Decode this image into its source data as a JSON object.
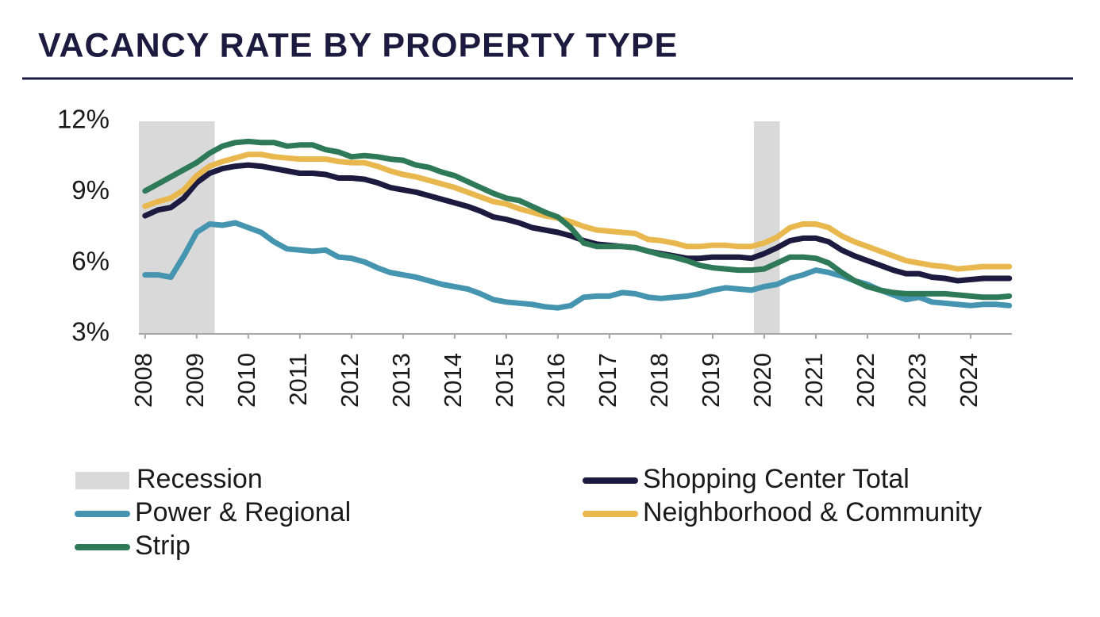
{
  "chart_data": {
    "type": "line",
    "title": "VACANCY RATE BY PROPERTY TYPE",
    "x": [
      2008,
      2008.25,
      2008.5,
      2008.75,
      2009,
      2009.25,
      2009.5,
      2009.75,
      2010,
      2010.25,
      2010.5,
      2010.75,
      2011,
      2011.25,
      2011.5,
      2011.75,
      2012,
      2012.25,
      2012.5,
      2012.75,
      2013,
      2013.25,
      2013.5,
      2013.75,
      2014,
      2014.25,
      2014.5,
      2014.75,
      2015,
      2015.25,
      2015.5,
      2015.75,
      2016,
      2016.25,
      2016.5,
      2016.75,
      2017,
      2017.25,
      2017.5,
      2017.75,
      2018,
      2018.25,
      2018.5,
      2018.75,
      2019,
      2019.25,
      2019.5,
      2019.75,
      2020,
      2020.25,
      2020.5,
      2020.75,
      2021,
      2021.25,
      2021.5,
      2021.75,
      2022,
      2022.25,
      2022.5,
      2022.75,
      2023,
      2023.25,
      2023.5,
      2023.75,
      2024,
      2024.25,
      2024.5,
      2024.75
    ],
    "series": [
      {
        "name": "Shopping Center Total",
        "color": "#1c1a3f",
        "values": [
          8.0,
          8.25,
          8.35,
          8.75,
          9.4,
          9.8,
          10.0,
          10.1,
          10.15,
          10.1,
          10.0,
          9.9,
          9.8,
          9.8,
          9.75,
          9.6,
          9.6,
          9.55,
          9.4,
          9.2,
          9.1,
          9.0,
          8.85,
          8.7,
          8.55,
          8.4,
          8.2,
          7.95,
          7.85,
          7.7,
          7.5,
          7.4,
          7.3,
          7.15,
          6.95,
          6.8,
          6.75,
          6.7,
          6.65,
          6.5,
          6.4,
          6.3,
          6.2,
          6.2,
          6.25,
          6.25,
          6.25,
          6.2,
          6.4,
          6.65,
          6.95,
          7.05,
          7.05,
          6.9,
          6.55,
          6.3,
          6.1,
          5.9,
          5.7,
          5.55,
          5.55,
          5.4,
          5.35,
          5.25,
          5.3,
          5.35,
          5.35,
          5.35
        ]
      },
      {
        "name": "Power & Regional",
        "color": "#4594b0",
        "values": [
          5.5,
          5.5,
          5.4,
          6.3,
          7.3,
          7.65,
          7.6,
          7.7,
          7.5,
          7.3,
          6.9,
          6.6,
          6.55,
          6.5,
          6.55,
          6.25,
          6.2,
          6.05,
          5.8,
          5.6,
          5.5,
          5.4,
          5.25,
          5.1,
          5.0,
          4.9,
          4.7,
          4.45,
          4.35,
          4.3,
          4.25,
          4.15,
          4.1,
          4.2,
          4.55,
          4.6,
          4.6,
          4.75,
          4.7,
          4.55,
          4.5,
          4.55,
          4.6,
          4.7,
          4.85,
          4.95,
          4.9,
          4.85,
          5.0,
          5.1,
          5.35,
          5.5,
          5.7,
          5.6,
          5.45,
          5.25,
          5.1,
          4.85,
          4.65,
          4.45,
          4.55,
          4.35,
          4.3,
          4.25,
          4.2,
          4.25,
          4.25,
          4.2
        ]
      },
      {
        "name": "Neighborhood & Community",
        "color": "#e8b84e",
        "values": [
          8.4,
          8.6,
          8.75,
          9.1,
          9.7,
          10.1,
          10.3,
          10.45,
          10.6,
          10.6,
          10.5,
          10.45,
          10.4,
          10.4,
          10.4,
          10.3,
          10.25,
          10.25,
          10.1,
          9.9,
          9.75,
          9.65,
          9.5,
          9.35,
          9.2,
          9.0,
          8.8,
          8.6,
          8.5,
          8.3,
          8.15,
          8.0,
          7.9,
          7.75,
          7.55,
          7.4,
          7.35,
          7.3,
          7.25,
          7.0,
          6.95,
          6.85,
          6.7,
          6.7,
          6.75,
          6.75,
          6.7,
          6.7,
          6.85,
          7.1,
          7.5,
          7.65,
          7.65,
          7.5,
          7.15,
          6.9,
          6.7,
          6.5,
          6.3,
          6.1,
          6.0,
          5.9,
          5.85,
          5.75,
          5.8,
          5.85,
          5.85,
          5.85
        ]
      },
      {
        "name": "Strip",
        "color": "#2e7a58",
        "values": [
          9.05,
          9.35,
          9.65,
          9.95,
          10.25,
          10.65,
          10.95,
          11.1,
          11.15,
          11.1,
          11.1,
          10.95,
          11.0,
          11.0,
          10.8,
          10.7,
          10.5,
          10.55,
          10.5,
          10.4,
          10.35,
          10.15,
          10.05,
          9.85,
          9.7,
          9.45,
          9.2,
          8.95,
          8.75,
          8.65,
          8.4,
          8.15,
          7.95,
          7.5,
          6.85,
          6.7,
          6.7,
          6.7,
          6.65,
          6.5,
          6.35,
          6.25,
          6.1,
          5.9,
          5.8,
          5.75,
          5.7,
          5.7,
          5.75,
          6.0,
          6.25,
          6.25,
          6.2,
          6.0,
          5.6,
          5.25,
          5.0,
          4.85,
          4.75,
          4.7,
          4.7,
          4.7,
          4.7,
          4.65,
          4.6,
          4.55,
          4.55,
          4.6
        ]
      }
    ],
    "recession_name": "Recession",
    "recession_color": "#d9d9d9",
    "recessions": [
      {
        "start": 2007.88,
        "end": 2009.35
      },
      {
        "start": 2019.8,
        "end": 2020.3
      }
    ],
    "xlim": [
      2007.88,
      2024.8
    ],
    "xticks": [
      2008,
      2009,
      2010,
      2011,
      2012,
      2013,
      2014,
      2015,
      2016,
      2017,
      2018,
      2019,
      2020,
      2021,
      2022,
      2023,
      2024
    ],
    "ylim": [
      3,
      12
    ],
    "yticks": [
      {
        "value": 3,
        "label": "3%"
      },
      {
        "value": 6,
        "label": "6%"
      },
      {
        "value": 9,
        "label": "9%"
      },
      {
        "value": 12,
        "label": "12%"
      }
    ],
    "grid": false
  }
}
